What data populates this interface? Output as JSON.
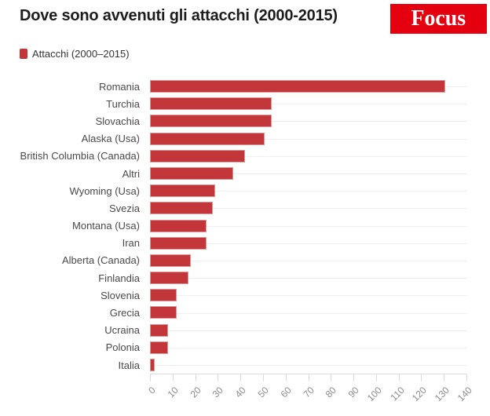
{
  "header": {
    "title": "Dove sono avvenuti gli attacchi (2000-2015)",
    "logo_text": "Focus"
  },
  "legend": {
    "label": "Attacchi (2000–2015)"
  },
  "chart_data": {
    "type": "bar",
    "orientation": "horizontal",
    "title": "Dove sono avvenuti gli attacchi (2000-2015)",
    "legend_entries": [
      "Attacchi (2000–2015)"
    ],
    "categories": [
      "Romania",
      "Turchia",
      "Slovachia",
      "Alaska (Usa)",
      "British Columbia (Canada)",
      "Altri",
      "Wyoming (Usa)",
      "Svezia",
      "Montana (Usa)",
      "Iran",
      "Alberta (Canada)",
      "Finlandia",
      "Slovenia",
      "Grecia",
      "Ucraina",
      "Polonia",
      "Italia"
    ],
    "values": [
      131,
      54,
      54,
      51,
      42,
      37,
      29,
      28,
      25,
      25,
      18,
      17,
      12,
      12,
      8,
      8,
      2
    ],
    "xlabel": "",
    "ylabel": "",
    "xlim": [
      0,
      140
    ],
    "x_ticks": [
      0,
      10,
      20,
      30,
      40,
      50,
      60,
      70,
      80,
      90,
      100,
      110,
      120,
      130,
      140
    ],
    "grid": "row-lines-horizontal",
    "legend_position": "top-left"
  },
  "colors": {
    "bar": "#c23639",
    "bar_edge": "#dd9597",
    "logo_bg": "#e4000f",
    "logo_text": "#ffffff",
    "title": "#1d1d1d",
    "label": "#494949",
    "legend_text": "#333333",
    "tick_label": "#8b8b8b",
    "axis_line": "#dcdcdc",
    "row_line": "#efefef"
  }
}
